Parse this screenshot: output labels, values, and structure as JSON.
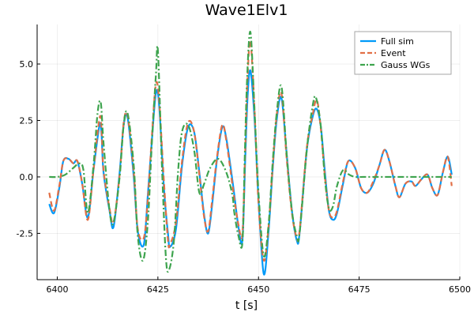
{
  "chart_data": {
    "type": "line",
    "title": "Wave1Elv1",
    "xlabel": "t [s]",
    "ylabel": "",
    "xlim": [
      6395,
      6500
    ],
    "ylim": [
      -4.55,
      6.75
    ],
    "x_ticks": [
      6400,
      6425,
      6450,
      6475,
      6500
    ],
    "x_tick_labels": [
      "6400",
      "6425",
      "6450",
      "6475",
      "6500"
    ],
    "y_ticks": [
      -2.5,
      0.0,
      2.5,
      5.0
    ],
    "y_tick_labels": [
      "-2.5",
      "0.0",
      "2.5",
      "5.0"
    ],
    "grid": true,
    "legend_position": "top-right",
    "series": [
      {
        "name": "Full sim",
        "color": "#009af9",
        "style": "solid",
        "x": [
          6398.0,
          6399.2,
          6400.5,
          6401.5,
          6402.8,
          6404.0,
          6405.0,
          6406.2,
          6407.6,
          6409.0,
          6410.5,
          6411.0,
          6411.5,
          6413.0,
          6414.0,
          6415.5,
          6416.5,
          6417.5,
          6419.0,
          6420.0,
          6421.5,
          6422.5,
          6423.5,
          6424.5,
          6425.3,
          6426.5,
          6427.5,
          6428.0,
          6429.5,
          6431.0,
          6432.5,
          6434.0,
          6435.3,
          6436.5,
          6437.5,
          6438.5,
          6439.7,
          6441.0,
          6442.0,
          6443.7,
          6445.0,
          6446.0,
          6446.7,
          6447.3,
          6448.0,
          6449.0,
          6450.0,
          6451.3,
          6452.5,
          6453.5,
          6454.5,
          6455.7,
          6457.0,
          6458.3,
          6459.5,
          6460.2,
          6462.0,
          6463.5,
          6464.5,
          6465.5,
          6466.5,
          6467.5,
          6468.5,
          6469.5,
          6471.0,
          6472.3,
          6474.0,
          6475.5,
          6477.0,
          6478.5,
          6480.0,
          6481.3,
          6482.5,
          6484.0,
          6485.0,
          6486.5,
          6488.0,
          6489.0,
          6490.5,
          6492.0,
          6493.2,
          6494.5,
          6495.8,
          6497.0,
          6498.0
        ],
        "y": [
          -1.2,
          -1.6,
          -0.5,
          0.7,
          0.8,
          0.6,
          0.7,
          -0.3,
          -1.8,
          0.3,
          2.3,
          1.9,
          0.2,
          -1.5,
          -2.2,
          0.2,
          2.3,
          2.6,
          0.0,
          -2.4,
          -3.0,
          -0.8,
          1.6,
          3.7,
          3.2,
          -0.5,
          -2.5,
          -3.1,
          -2.3,
          0.5,
          2.2,
          2.0,
          0.2,
          -1.7,
          -2.5,
          -1.2,
          0.8,
          2.2,
          1.7,
          -0.4,
          -2.2,
          -2.8,
          0.8,
          3.6,
          4.7,
          2.6,
          -1.0,
          -4.3,
          -2.4,
          0.3,
          2.5,
          3.5,
          1.0,
          -1.5,
          -2.8,
          -2.5,
          1.2,
          2.7,
          3.0,
          2.2,
          0.2,
          -1.5,
          -1.9,
          -1.6,
          -0.3,
          0.7,
          0.4,
          -0.5,
          -0.7,
          -0.3,
          0.5,
          1.2,
          0.7,
          -0.4,
          -0.9,
          -0.3,
          -0.2,
          -0.4,
          -0.1,
          0.1,
          -0.5,
          -0.8,
          0.2,
          0.9,
          0.1
        ]
      },
      {
        "name": "Event",
        "color": "#e26f46",
        "style": "dash",
        "x": [
          6398.0,
          6399.2,
          6400.5,
          6401.5,
          6402.8,
          6404.0,
          6405.0,
          6406.2,
          6407.6,
          6409.0,
          6410.5,
          6411.0,
          6411.5,
          6413.0,
          6414.0,
          6415.5,
          6416.5,
          6417.5,
          6419.0,
          6420.0,
          6421.5,
          6422.5,
          6423.5,
          6424.5,
          6425.3,
          6426.5,
          6427.5,
          6428.0,
          6429.5,
          6431.0,
          6432.5,
          6434.0,
          6435.3,
          6436.5,
          6437.5,
          6438.5,
          6439.7,
          6441.0,
          6442.0,
          6443.7,
          6445.0,
          6446.0,
          6446.7,
          6447.3,
          6448.0,
          6449.0,
          6450.0,
          6451.3,
          6452.5,
          6453.5,
          6454.5,
          6455.7,
          6457.0,
          6458.3,
          6459.5,
          6460.2,
          6462.0,
          6463.5,
          6464.5,
          6465.5,
          6466.5,
          6467.5,
          6468.5,
          6469.5,
          6471.0,
          6472.3,
          6474.0,
          6475.5,
          6477.0,
          6478.5,
          6480.0,
          6481.3,
          6482.5,
          6484.0,
          6485.0,
          6486.5,
          6488.0,
          6489.0,
          6490.5,
          6492.0,
          6493.2,
          6494.5,
          6495.8,
          6497.0,
          6498.0
        ],
        "y": [
          -0.7,
          -1.5,
          -0.4,
          0.7,
          0.8,
          0.6,
          0.7,
          -0.3,
          -1.9,
          0.3,
          2.6,
          2.1,
          0.3,
          -1.4,
          -2.0,
          0.1,
          2.4,
          2.7,
          0.2,
          -2.3,
          -2.7,
          -1.0,
          1.8,
          4.1,
          3.4,
          -0.2,
          -2.8,
          -3.0,
          -2.0,
          0.7,
          2.4,
          2.0,
          0.1,
          -1.8,
          -2.4,
          -1.0,
          0.9,
          2.3,
          1.6,
          -0.6,
          -2.1,
          -2.5,
          1.2,
          4.5,
          6.0,
          3.0,
          -1.2,
          -3.7,
          -2.2,
          0.4,
          2.7,
          3.7,
          0.8,
          -1.6,
          -2.7,
          -2.4,
          1.3,
          2.8,
          3.4,
          2.1,
          0.0,
          -1.5,
          -1.8,
          -1.5,
          -0.2,
          0.7,
          0.4,
          -0.5,
          -0.7,
          -0.2,
          0.5,
          1.2,
          0.7,
          -0.4,
          -0.9,
          -0.3,
          -0.2,
          -0.4,
          -0.1,
          0.1,
          -0.5,
          -0.8,
          0.2,
          0.9,
          -0.4
        ]
      },
      {
        "name": "Gauss WGs",
        "color": "#3ea44e",
        "style": "dashdot",
        "x": [
          6398.0,
          6400.0,
          6402.0,
          6404.0,
          6405.5,
          6406.5,
          6407.6,
          6409.0,
          6410.0,
          6410.8,
          6411.5,
          6413.0,
          6414.0,
          6415.5,
          6416.5,
          6417.5,
          6419.0,
          6420.0,
          6421.3,
          6422.5,
          6423.5,
          6424.5,
          6425.0,
          6426.0,
          6427.0,
          6427.8,
          6429.0,
          6430.0,
          6431.0,
          6432.5,
          6434.0,
          6435.3,
          6436.5,
          6438.0,
          6440.0,
          6442.0,
          6443.5,
          6444.0,
          6445.0,
          6446.0,
          6446.6,
          6447.2,
          6448.0,
          6449.0,
          6450.0,
          6451.3,
          6452.5,
          6453.5,
          6454.5,
          6455.7,
          6457.0,
          6458.3,
          6459.5,
          6460.2,
          6462.0,
          6463.5,
          6464.3,
          6465.5,
          6466.5,
          6467.5,
          6468.5,
          6469.5,
          6471.0,
          6472.5,
          6474.0,
          6476.0,
          6478.0,
          6480.0,
          6484.0,
          6488.0,
          6492.0,
          6496.0,
          6498.0
        ],
        "y": [
          0.0,
          0.0,
          0.1,
          0.4,
          0.6,
          0.3,
          -1.6,
          0.5,
          2.8,
          3.3,
          1.5,
          -1.5,
          -2.0,
          0.0,
          2.3,
          2.8,
          0.5,
          -2.6,
          -3.7,
          -2.0,
          1.5,
          4.5,
          5.6,
          0.5,
          -3.6,
          -4.1,
          -2.8,
          0.2,
          2.0,
          2.3,
          1.2,
          -0.7,
          -0.3,
          0.4,
          0.8,
          0.2,
          -0.8,
          -1.6,
          -2.6,
          -2.9,
          1.0,
          4.5,
          6.4,
          3.0,
          -0.7,
          -3.5,
          -2.1,
          0.6,
          2.8,
          4.0,
          1.0,
          -1.5,
          -2.6,
          -2.5,
          1.2,
          3.2,
          3.5,
          2.2,
          -0.1,
          -1.4,
          -1.3,
          -0.4,
          0.3,
          0.1,
          0.0,
          0.0,
          0.0,
          0.0,
          0.0,
          0.0,
          0.0,
          0.0,
          0.0
        ]
      }
    ]
  }
}
